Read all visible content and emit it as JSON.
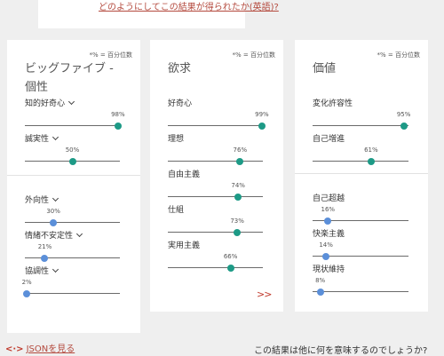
{
  "top": {
    "link": "どのようにしてこの結果が得られたか(英語)?"
  },
  "note": "*% = 百分位数",
  "panels": {
    "big5": {
      "title": "ビッグファイブ - 個性",
      "groups": [
        [
          {
            "label": "知的好奇心",
            "value": 98,
            "pct": "98%",
            "chevron": true
          },
          {
            "label": "誠実性",
            "value": 50,
            "pct": "50%",
            "chevron": true
          }
        ],
        [
          {
            "label": "外向性",
            "value": 30,
            "pct": "30%",
            "chevron": true
          },
          {
            "label": "情緒不安定性",
            "value": 21,
            "pct": "21%",
            "chevron": true
          },
          {
            "label": "協調性",
            "value": 2,
            "pct": "2%",
            "chevron": true
          }
        ]
      ]
    },
    "needs": {
      "title": "欲求",
      "groups": [
        [
          {
            "label": "好奇心",
            "value": 99,
            "pct": "99%",
            "chevron": false
          },
          {
            "label": "理想",
            "value": 76,
            "pct": "76%",
            "chevron": false
          },
          {
            "label": "自由主義",
            "value": 74,
            "pct": "74%",
            "chevron": false
          },
          {
            "label": "仕組",
            "value": 73,
            "pct": "73%",
            "chevron": false
          },
          {
            "label": "実用主義",
            "value": 66,
            "pct": "66%",
            "chevron": false
          }
        ]
      ],
      "more": ">>"
    },
    "values": {
      "title": "価値",
      "groups": [
        [
          {
            "label": "変化許容性",
            "value": 95,
            "pct": "95%",
            "chevron": false
          },
          {
            "label": "自己増進",
            "value": 61,
            "pct": "61%",
            "chevron": false
          }
        ],
        [
          {
            "label": "自己超越",
            "value": 16,
            "pct": "16%",
            "chevron": false
          },
          {
            "label": "快楽主義",
            "value": 14,
            "pct": "14%",
            "chevron": false
          },
          {
            "label": "現状維持",
            "value": 8,
            "pct": "8%",
            "chevron": false
          }
        ]
      ]
    }
  },
  "footer": {
    "code_icon": "<·>",
    "json_link": "JSONを見る",
    "question": "この結果は他に何を意味するのでしょうか?"
  },
  "colors": {
    "high": "#1d9a86",
    "low": "#5b8fd9",
    "link": "#b44a3e"
  },
  "icons": {
    "chevron": "chevron-down-icon",
    "code": "code-icon"
  }
}
